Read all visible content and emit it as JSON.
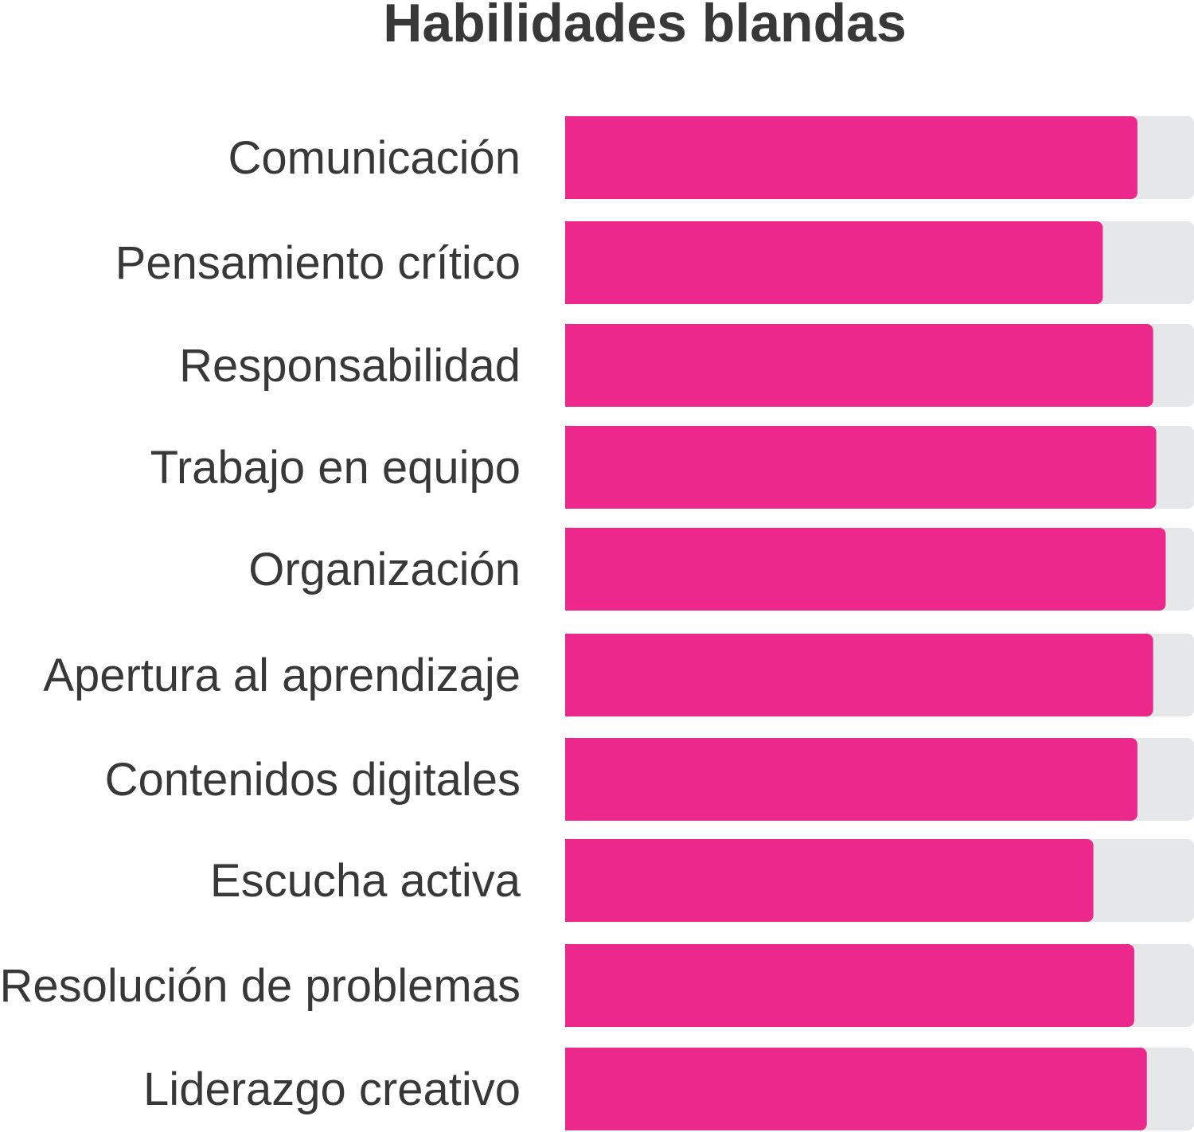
{
  "chart_data": {
    "type": "bar",
    "orientation": "horizontal",
    "title": "Habilidades blandas",
    "xlim": [
      0,
      100
    ],
    "grid": false,
    "legend": "none",
    "categories": [
      "Comunicación",
      "Pensamiento crítico",
      "Responsabilidad",
      "Trabajo en equipo",
      "Organización",
      "Apertura al aprendizaje",
      "Contenidos digitales",
      "Escucha activa",
      "Resolución de problemas",
      "Liderazgo creativo"
    ],
    "values": [
      91,
      85.5,
      93.5,
      94,
      95.5,
      93.5,
      91,
      84,
      90.5,
      92.5
    ],
    "colors": {
      "bar": "#EC288C",
      "track": "#E6E7E8",
      "text": "#383838"
    }
  }
}
